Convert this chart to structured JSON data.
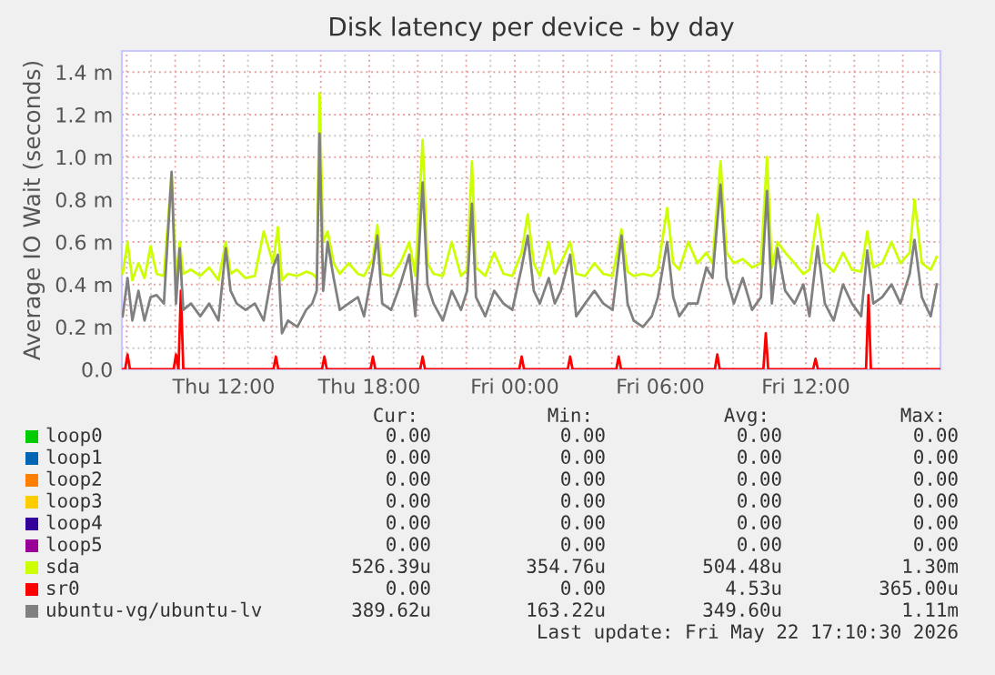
{
  "chart_data": {
    "type": "line",
    "title": "Disk latency per device - by day",
    "ylabel": "Average IO Wait (seconds)",
    "xlim": [
      "2026-05-21T07:48",
      "2026-05-22T17:33"
    ],
    "ylim": [
      0,
      1.5
    ],
    "xticks": [
      {
        "value": "2026-05-21T08:00",
        "label": null
      },
      {
        "value": "2026-05-21T10:00",
        "label": null
      },
      {
        "value": "2026-05-21T12:00",
        "label": "Thu 12:00"
      },
      {
        "value": "2026-05-21T14:00",
        "label": null
      },
      {
        "value": "2026-05-21T16:00",
        "label": null
      },
      {
        "value": "2026-05-21T18:00",
        "label": "Thu 18:00"
      },
      {
        "value": "2026-05-21T20:00",
        "label": null
      },
      {
        "value": "2026-05-21T22:00",
        "label": null
      },
      {
        "value": "2026-05-22T00:00",
        "label": "Fri 00:00"
      },
      {
        "value": "2026-05-22T02:00",
        "label": null
      },
      {
        "value": "2026-05-22T04:00",
        "label": null
      },
      {
        "value": "2026-05-22T06:00",
        "label": "Fri 06:00"
      },
      {
        "value": "2026-05-22T08:00",
        "label": null
      },
      {
        "value": "2026-05-22T10:00",
        "label": null
      },
      {
        "value": "2026-05-22T12:00",
        "label": "Fri 12:00"
      },
      {
        "value": "2026-05-22T14:00",
        "label": null
      },
      {
        "value": "2026-05-22T16:00",
        "label": null
      }
    ],
    "yticks": [
      {
        "value": 0,
        "label": "0.0"
      },
      {
        "value": 0.2,
        "label": "0.2 m"
      },
      {
        "value": 0.4,
        "label": "0.4 m"
      },
      {
        "value": 0.6,
        "label": "0.6 m"
      },
      {
        "value": 0.8,
        "label": "0.8 m"
      },
      {
        "value": 1.0,
        "label": "1.0 m"
      },
      {
        "value": 1.2,
        "label": "1.2 m"
      },
      {
        "value": 1.4,
        "label": "1.4 m"
      }
    ],
    "grid": true,
    "legend": "bottom",
    "marker": "none",
    "line_style": "solid",
    "series": [
      {
        "name": "loop0",
        "color": "#00cc00"
      },
      {
        "name": "loop1",
        "color": "#0066b3"
      },
      {
        "name": "loop2",
        "color": "#ff8000"
      },
      {
        "name": "loop3",
        "color": "#ffcc00"
      },
      {
        "name": "loop4",
        "color": "#330099"
      },
      {
        "name": "loop5",
        "color": "#990099"
      },
      {
        "name": "sda",
        "color": "#ccff00",
        "x": [
          "2026-05-21T07:50",
          "2026-05-21T08:02",
          "2026-05-21T08:14",
          "2026-05-21T08:29",
          "2026-05-21T08:44",
          "2026-05-21T08:59",
          "2026-05-21T09:14",
          "2026-05-21T09:32",
          "2026-05-21T09:51",
          "2026-05-21T10:02",
          "2026-05-21T10:11",
          "2026-05-21T10:20",
          "2026-05-21T10:39",
          "2026-05-21T11:02",
          "2026-05-21T11:24",
          "2026-05-21T11:47",
          "2026-05-21T12:05",
          "2026-05-21T12:17",
          "2026-05-21T12:32",
          "2026-05-21T12:54",
          "2026-05-21T13:17",
          "2026-05-21T13:39",
          "2026-05-21T14:02",
          "2026-05-21T14:14",
          "2026-05-21T14:24",
          "2026-05-21T14:39",
          "2026-05-21T15:02",
          "2026-05-21T15:24",
          "2026-05-21T15:39",
          "2026-05-21T15:50",
          "2026-05-21T15:57",
          "2026-05-21T16:06",
          "2026-05-21T16:17",
          "2026-05-21T16:32",
          "2026-05-21T16:47",
          "2026-05-21T17:09",
          "2026-05-21T17:32",
          "2026-05-21T17:47",
          "2026-05-21T18:09",
          "2026-05-21T18:20",
          "2026-05-21T18:32",
          "2026-05-21T18:54",
          "2026-05-21T19:17",
          "2026-05-21T19:39",
          "2026-05-21T19:54",
          "2026-05-21T20:12",
          "2026-05-21T20:24",
          "2026-05-21T20:39",
          "2026-05-21T21:02",
          "2026-05-21T21:24",
          "2026-05-21T21:47",
          "2026-05-21T22:02",
          "2026-05-21T22:14",
          "2026-05-21T22:24",
          "2026-05-21T22:47",
          "2026-05-21T23:09",
          "2026-05-21T23:32",
          "2026-05-21T23:54",
          "2026-05-22T00:17",
          "2026-05-22T00:32",
          "2026-05-22T00:47",
          "2026-05-22T01:02",
          "2026-05-22T01:24",
          "2026-05-22T01:39",
          "2026-05-22T01:54",
          "2026-05-22T02:17",
          "2026-05-22T02:32",
          "2026-05-22T02:54",
          "2026-05-22T03:17",
          "2026-05-22T03:39",
          "2026-05-22T04:02",
          "2026-05-22T04:24",
          "2026-05-22T04:39",
          "2026-05-22T04:54",
          "2026-05-22T05:17",
          "2026-05-22T05:39",
          "2026-05-22T05:54",
          "2026-05-22T06:17",
          "2026-05-22T06:32",
          "2026-05-22T06:47",
          "2026-05-22T07:09",
          "2026-05-22T07:32",
          "2026-05-22T07:54",
          "2026-05-22T08:09",
          "2026-05-22T08:29",
          "2026-05-22T08:44",
          "2026-05-22T09:02",
          "2026-05-22T09:24",
          "2026-05-22T09:47",
          "2026-05-22T10:09",
          "2026-05-22T10:24",
          "2026-05-22T10:36",
          "2026-05-22T10:50",
          "2026-05-22T11:09",
          "2026-05-22T11:32",
          "2026-05-22T11:54",
          "2026-05-22T12:09",
          "2026-05-22T12:29",
          "2026-05-22T12:47",
          "2026-05-22T13:09",
          "2026-05-22T13:32",
          "2026-05-22T13:54",
          "2026-05-22T14:17",
          "2026-05-22T14:32",
          "2026-05-22T14:47",
          "2026-05-22T15:09",
          "2026-05-22T15:32",
          "2026-05-22T15:54",
          "2026-05-22T16:17",
          "2026-05-22T16:29",
          "2026-05-22T16:47",
          "2026-05-22T17:09",
          "2026-05-22T17:24"
        ],
        "values": [
          0.45,
          0.6,
          0.42,
          0.5,
          0.43,
          0.58,
          0.45,
          0.44,
          0.92,
          0.43,
          0.6,
          0.45,
          0.47,
          0.44,
          0.48,
          0.42,
          0.6,
          0.45,
          0.47,
          0.43,
          0.44,
          0.65,
          0.5,
          0.67,
          0.42,
          0.45,
          0.44,
          0.46,
          0.45,
          0.43,
          1.3,
          0.6,
          0.65,
          0.5,
          0.45,
          0.5,
          0.45,
          0.44,
          0.52,
          0.68,
          0.45,
          0.44,
          0.5,
          0.6,
          0.44,
          1.08,
          0.5,
          0.45,
          0.44,
          0.6,
          0.44,
          0.47,
          0.98,
          0.48,
          0.44,
          0.55,
          0.45,
          0.44,
          0.55,
          0.73,
          0.5,
          0.44,
          0.6,
          0.45,
          0.5,
          0.6,
          0.45,
          0.44,
          0.5,
          0.45,
          0.44,
          0.66,
          0.46,
          0.44,
          0.45,
          0.44,
          0.47,
          0.76,
          0.5,
          0.47,
          0.6,
          0.5,
          0.55,
          0.5,
          0.98,
          0.55,
          0.5,
          0.52,
          0.48,
          0.5,
          1.0,
          0.48,
          0.6,
          0.55,
          0.5,
          0.45,
          0.47,
          0.73,
          0.5,
          0.46,
          0.55,
          0.47,
          0.46,
          0.65,
          0.48,
          0.5,
          0.6,
          0.5,
          0.55,
          0.8,
          0.5,
          0.47,
          0.53
        ]
      },
      {
        "name": "sr0",
        "color": "#ff0000",
        "x": [
          "2026-05-21T07:48",
          "2026-05-21T07:56",
          "2026-05-21T08:02",
          "2026-05-21T08:08",
          "2026-05-21T09:56",
          "2026-05-21T10:02",
          "2026-05-21T10:08",
          "2026-05-21T10:14",
          "2026-05-21T10:20",
          "2026-05-21T14:03",
          "2026-05-21T14:09",
          "2026-05-21T14:15",
          "2026-05-21T16:03",
          "2026-05-21T16:09",
          "2026-05-21T16:15",
          "2026-05-21T18:03",
          "2026-05-21T18:09",
          "2026-05-21T18:15",
          "2026-05-21T20:06",
          "2026-05-21T20:12",
          "2026-05-21T20:18",
          "2026-05-22T00:11",
          "2026-05-22T00:17",
          "2026-05-22T00:23",
          "2026-05-22T02:11",
          "2026-05-22T02:17",
          "2026-05-22T02:23",
          "2026-05-22T04:11",
          "2026-05-22T04:17",
          "2026-05-22T04:23",
          "2026-05-22T08:15",
          "2026-05-22T08:21",
          "2026-05-22T08:27",
          "2026-05-22T10:15",
          "2026-05-22T10:21",
          "2026-05-22T10:27",
          "2026-05-22T12:18",
          "2026-05-22T12:24",
          "2026-05-22T12:30",
          "2026-05-22T14:29",
          "2026-05-22T14:35",
          "2026-05-22T14:41",
          "2026-05-22T17:33"
        ],
        "values": [
          0,
          0,
          0.07,
          0,
          0,
          0.07,
          0,
          0.37,
          0,
          0,
          0.06,
          0,
          0,
          0.06,
          0,
          0,
          0.06,
          0,
          0,
          0.06,
          0,
          0,
          0.06,
          0,
          0,
          0.06,
          0,
          0,
          0.06,
          0,
          0,
          0.07,
          0,
          0,
          0.17,
          0,
          0,
          0.05,
          0,
          0,
          0.35,
          0,
          0
        ]
      },
      {
        "name": "ubuntu-vg/ubuntu-lv",
        "color": "#808080",
        "x": [
          "2026-05-21T07:50",
          "2026-05-21T08:02",
          "2026-05-21T08:14",
          "2026-05-21T08:29",
          "2026-05-21T08:44",
          "2026-05-21T08:59",
          "2026-05-21T09:14",
          "2026-05-21T09:32",
          "2026-05-21T09:51",
          "2026-05-21T10:02",
          "2026-05-21T10:11",
          "2026-05-21T10:20",
          "2026-05-21T10:39",
          "2026-05-21T11:02",
          "2026-05-21T11:24",
          "2026-05-21T11:47",
          "2026-05-21T12:05",
          "2026-05-21T12:17",
          "2026-05-21T12:32",
          "2026-05-21T12:54",
          "2026-05-21T13:17",
          "2026-05-21T13:39",
          "2026-05-21T14:02",
          "2026-05-21T14:14",
          "2026-05-21T14:24",
          "2026-05-21T14:39",
          "2026-05-21T15:02",
          "2026-05-21T15:24",
          "2026-05-21T15:39",
          "2026-05-21T15:50",
          "2026-05-21T15:57",
          "2026-05-21T16:06",
          "2026-05-21T16:17",
          "2026-05-21T16:32",
          "2026-05-21T16:47",
          "2026-05-21T17:09",
          "2026-05-21T17:32",
          "2026-05-21T17:47",
          "2026-05-21T18:09",
          "2026-05-21T18:20",
          "2026-05-21T18:32",
          "2026-05-21T18:54",
          "2026-05-21T19:17",
          "2026-05-21T19:39",
          "2026-05-21T19:54",
          "2026-05-21T20:12",
          "2026-05-21T20:24",
          "2026-05-21T20:39",
          "2026-05-21T21:02",
          "2026-05-21T21:24",
          "2026-05-21T21:47",
          "2026-05-21T22:02",
          "2026-05-21T22:14",
          "2026-05-21T22:24",
          "2026-05-21T22:47",
          "2026-05-21T23:09",
          "2026-05-21T23:32",
          "2026-05-21T23:54",
          "2026-05-22T00:17",
          "2026-05-22T00:32",
          "2026-05-22T00:47",
          "2026-05-22T01:02",
          "2026-05-22T01:24",
          "2026-05-22T01:39",
          "2026-05-22T01:54",
          "2026-05-22T02:17",
          "2026-05-22T02:32",
          "2026-05-22T02:54",
          "2026-05-22T03:17",
          "2026-05-22T03:39",
          "2026-05-22T04:02",
          "2026-05-22T04:24",
          "2026-05-22T04:39",
          "2026-05-22T04:54",
          "2026-05-22T05:17",
          "2026-05-22T05:39",
          "2026-05-22T05:54",
          "2026-05-22T06:17",
          "2026-05-22T06:32",
          "2026-05-22T06:47",
          "2026-05-22T07:09",
          "2026-05-22T07:32",
          "2026-05-22T07:54",
          "2026-05-22T08:09",
          "2026-05-22T08:29",
          "2026-05-22T08:44",
          "2026-05-22T09:02",
          "2026-05-22T09:24",
          "2026-05-22T09:47",
          "2026-05-22T10:09",
          "2026-05-22T10:24",
          "2026-05-22T10:36",
          "2026-05-22T10:50",
          "2026-05-22T11:09",
          "2026-05-22T11:32",
          "2026-05-22T11:54",
          "2026-05-22T12:09",
          "2026-05-22T12:29",
          "2026-05-22T12:47",
          "2026-05-22T13:09",
          "2026-05-22T13:32",
          "2026-05-22T13:54",
          "2026-05-22T14:17",
          "2026-05-22T14:32",
          "2026-05-22T14:47",
          "2026-05-22T15:09",
          "2026-05-22T15:32",
          "2026-05-22T15:54",
          "2026-05-22T16:17",
          "2026-05-22T16:29",
          "2026-05-22T16:47",
          "2026-05-22T17:09",
          "2026-05-22T17:24"
        ],
        "values": [
          0.25,
          0.43,
          0.23,
          0.37,
          0.23,
          0.34,
          0.35,
          0.31,
          0.93,
          0.31,
          0.57,
          0.28,
          0.31,
          0.25,
          0.31,
          0.23,
          0.57,
          0.37,
          0.31,
          0.28,
          0.31,
          0.23,
          0.48,
          0.54,
          0.17,
          0.23,
          0.2,
          0.28,
          0.31,
          0.37,
          1.11,
          0.37,
          0.6,
          0.43,
          0.28,
          0.31,
          0.34,
          0.25,
          0.48,
          0.63,
          0.31,
          0.28,
          0.4,
          0.54,
          0.25,
          0.88,
          0.4,
          0.31,
          0.23,
          0.37,
          0.28,
          0.37,
          0.78,
          0.34,
          0.25,
          0.37,
          0.31,
          0.28,
          0.48,
          0.63,
          0.37,
          0.31,
          0.43,
          0.31,
          0.37,
          0.54,
          0.25,
          0.31,
          0.37,
          0.31,
          0.28,
          0.63,
          0.31,
          0.23,
          0.2,
          0.25,
          0.34,
          0.6,
          0.34,
          0.25,
          0.31,
          0.31,
          0.48,
          0.43,
          0.87,
          0.43,
          0.31,
          0.43,
          0.28,
          0.34,
          0.84,
          0.31,
          0.57,
          0.37,
          0.31,
          0.4,
          0.25,
          0.58,
          0.31,
          0.23,
          0.4,
          0.31,
          0.25,
          0.56,
          0.31,
          0.34,
          0.4,
          0.31,
          0.45,
          0.61,
          0.34,
          0.25,
          0.4
        ]
      }
    ],
    "annotations": [
      "Cur:",
      "Min:",
      "Avg:",
      "Max:",
      "0.00",
      "0.00",
      "0.00",
      "0.00",
      "0.00",
      "0.00",
      "0.00",
      "0.00",
      "0.00",
      "0.00",
      "0.00",
      "0.00",
      "0.00",
      "0.00",
      "0.00",
      "0.00",
      "0.00",
      "0.00",
      "0.00",
      "0.00",
      "0.00",
      "0.00",
      "0.00",
      "0.00",
      "526.39u",
      "354.76u",
      "504.48u",
      "1.30m",
      "0.00",
      "0.00",
      "4.53u",
      "365.00u",
      "389.62u",
      "163.22u",
      "349.60u",
      "1.11m",
      "Last update: Fri May 22 17:10:30 2026"
    ]
  }
}
